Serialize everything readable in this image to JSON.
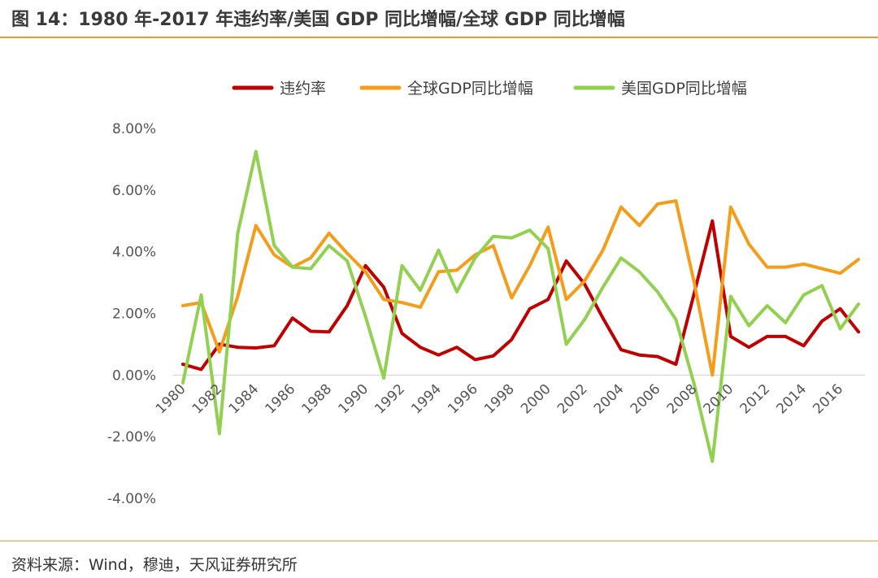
{
  "title": "图 14：1980 年-2017 年违约率/美国 GDP 同比增幅/全球 GDP 同比增幅",
  "source": "资料来源：Wind，穆迪，天风证券研究所",
  "chart_data": {
    "type": "line",
    "title": "",
    "xlabel": "",
    "ylabel": "",
    "ylim": [
      -4,
      8
    ],
    "yticks": [
      "-4.00%",
      "-2.00%",
      "0.00%",
      "2.00%",
      "4.00%",
      "6.00%",
      "8.00%"
    ],
    "ytick_values": [
      -4,
      -2,
      0,
      2,
      4,
      6,
      8
    ],
    "xtick_labels": [
      "1980",
      "1982",
      "1984",
      "1986",
      "1988",
      "1990",
      "1992",
      "1994",
      "1996",
      "1998",
      "2000",
      "2002",
      "2004",
      "2006",
      "2008",
      "2010",
      "2012",
      "2014",
      "2016"
    ],
    "legend_position": "top",
    "x": [
      1980,
      1981,
      1982,
      1983,
      1984,
      1985,
      1986,
      1987,
      1988,
      1989,
      1990,
      1991,
      1992,
      1993,
      1994,
      1995,
      1996,
      1997,
      1998,
      1999,
      2000,
      2001,
      2002,
      2003,
      2004,
      2005,
      2006,
      2007,
      2008,
      2009,
      2010,
      2011,
      2012,
      2013,
      2014,
      2015,
      2016,
      2017
    ],
    "series": [
      {
        "name": "违约率",
        "color": "#c00000",
        "values": [
          0.35,
          0.18,
          1.0,
          0.9,
          0.88,
          0.95,
          1.85,
          1.42,
          1.4,
          2.25,
          3.55,
          2.85,
          1.35,
          0.9,
          0.65,
          0.9,
          0.5,
          0.62,
          1.15,
          2.15,
          2.45,
          3.7,
          2.95,
          1.85,
          0.82,
          0.65,
          0.6,
          0.35,
          2.65,
          5.0,
          1.25,
          0.9,
          1.25,
          1.25,
          0.95,
          1.75,
          2.15,
          1.4
        ]
      },
      {
        "name": "全球GDP同比增幅",
        "color": "#f59d1a",
        "values": [
          2.25,
          2.35,
          0.75,
          2.55,
          4.85,
          3.9,
          3.5,
          3.8,
          4.6,
          3.95,
          3.35,
          2.45,
          2.35,
          2.2,
          3.35,
          3.4,
          3.9,
          4.2,
          2.5,
          3.55,
          4.8,
          2.45,
          3.05,
          4.05,
          5.45,
          4.85,
          5.55,
          5.65,
          3.0,
          0.0,
          5.45,
          4.25,
          3.5,
          3.5,
          3.6,
          3.45,
          3.3,
          3.75
        ]
      },
      {
        "name": "美国GDP同比增幅",
        "color": "#92d050",
        "values": [
          -0.25,
          2.6,
          -1.9,
          4.6,
          7.25,
          4.2,
          3.5,
          3.45,
          4.2,
          3.7,
          1.9,
          -0.1,
          3.55,
          2.75,
          4.05,
          2.7,
          3.8,
          4.5,
          4.45,
          4.7,
          4.1,
          1.0,
          1.8,
          2.85,
          3.8,
          3.35,
          2.7,
          1.8,
          -0.3,
          -2.8,
          2.55,
          1.6,
          2.25,
          1.7,
          2.6,
          2.9,
          1.5,
          2.3
        ]
      }
    ]
  }
}
